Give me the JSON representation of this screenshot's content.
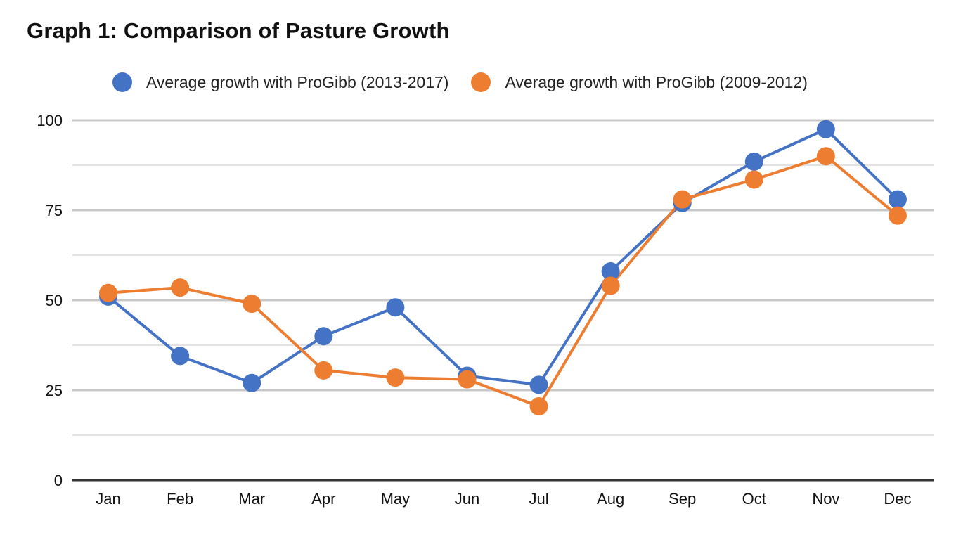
{
  "chart_data": {
    "type": "line",
    "title": "Graph 1: Comparison of Pasture Growth",
    "xlabel": "",
    "ylabel": "",
    "categories": [
      "Jan",
      "Feb",
      "Mar",
      "Apr",
      "May",
      "Jun",
      "Jul",
      "Aug",
      "Sep",
      "Oct",
      "Nov",
      "Dec"
    ],
    "ylim": [
      0,
      100
    ],
    "yticks": [
      0,
      25,
      50,
      75,
      100
    ],
    "grid": true,
    "legend_position": "top",
    "series": [
      {
        "name": "Average growth with ProGibb (2013-2017)",
        "color": "#4472C4",
        "values": [
          51,
          34.5,
          27,
          40,
          48,
          29,
          26.5,
          58,
          77,
          88.5,
          97.5,
          78
        ]
      },
      {
        "name": "Average growth with ProGibb (2009-2012)",
        "color": "#ED7D31",
        "values": [
          52,
          53.5,
          49,
          30.5,
          28.5,
          28,
          20.5,
          54,
          78,
          83.5,
          90,
          73.5
        ]
      }
    ]
  }
}
